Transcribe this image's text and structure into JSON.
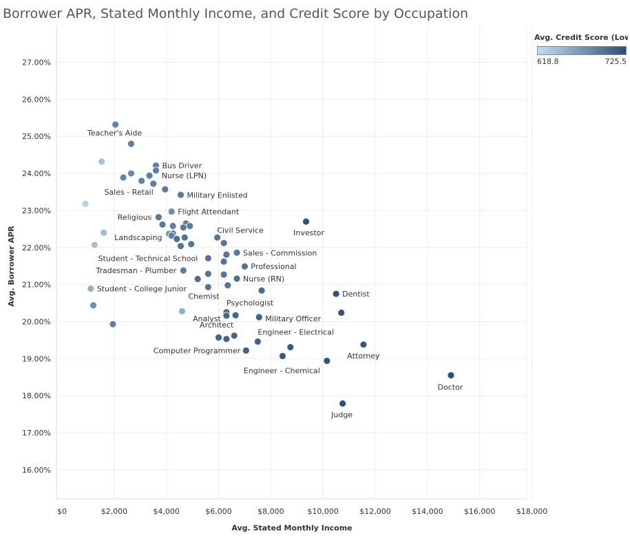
{
  "chart_data": {
    "type": "scatter",
    "title": "Borrower APR, Stated Monthly Income, and Credit Score by Occupation",
    "xlabel": "Avg. Stated Monthly Income",
    "ylabel": "Avg. Borrower APR",
    "xlim": [
      0,
      18000
    ],
    "ylim": [
      0.15,
      0.28
    ],
    "x_ticks": [
      "$0",
      "$2,000",
      "$4,000",
      "$6,000",
      "$8,000",
      "$10,000",
      "$12,000",
      "$14,000",
      "$16,000",
      "$18,000"
    ],
    "y_ticks": [
      "16.00%",
      "17.00%",
      "18.00%",
      "19.00%",
      "20.00%",
      "21.00%",
      "22.00%",
      "23.00%",
      "24.00%",
      "25.00%",
      "26.00%",
      "27.00%"
    ],
    "grid": true,
    "legend": {
      "title": "Avg. Credit Score (Lowe..",
      "min_label": "618.8",
      "max_label": "725.5",
      "min": 618.8,
      "max": 725.5,
      "color_low": "#c0def2",
      "color_high": "#2c4f78",
      "placement": "top-right"
    },
    "points": [
      {
        "label": "",
        "x": 2050,
        "y": 0.2532,
        "score": 688
      },
      {
        "label": "Teacher's Aide",
        "x": 2650,
        "y": 0.248,
        "score": 690
      },
      {
        "label": "",
        "x": 1520,
        "y": 0.2432,
        "score": 640
      },
      {
        "label": "Bus Driver",
        "x": 3600,
        "y": 0.2421,
        "score": 690
      },
      {
        "label": "",
        "x": 3600,
        "y": 0.2408,
        "score": 690
      },
      {
        "label": "",
        "x": 2650,
        "y": 0.24,
        "score": 682
      },
      {
        "label": "",
        "x": 3350,
        "y": 0.2394,
        "score": 690
      },
      {
        "label": "",
        "x": 2350,
        "y": 0.2389,
        "score": 685
      },
      {
        "label": "",
        "x": 3050,
        "y": 0.238,
        "score": 687
      },
      {
        "label": "Nurse (LPN)",
        "x": 3500,
        "y": 0.2372,
        "score": 690
      },
      {
        "label": "Sales - Retail",
        "x": 3950,
        "y": 0.2357,
        "score": 693
      },
      {
        "label": "Military Enlisted",
        "x": 4550,
        "y": 0.2342,
        "score": 692
      },
      {
        "label": "",
        "x": 900,
        "y": 0.2318,
        "score": 628
      },
      {
        "label": "Flight Attendant",
        "x": 4200,
        "y": 0.2297,
        "score": 680
      },
      {
        "label": "Religious",
        "x": 3700,
        "y": 0.2282,
        "score": 695
      },
      {
        "label": "Investor",
        "x": 9350,
        "y": 0.227,
        "score": 724
      },
      {
        "label": "",
        "x": 4750,
        "y": 0.2265,
        "score": 690
      },
      {
        "label": "",
        "x": 3850,
        "y": 0.2262,
        "score": 693
      },
      {
        "label": "",
        "x": 4900,
        "y": 0.2258,
        "score": 692
      },
      {
        "label": "",
        "x": 4250,
        "y": 0.2258,
        "score": 690
      },
      {
        "label": "Civil Service",
        "x": 4650,
        "y": 0.2254,
        "score": 693
      },
      {
        "label": "",
        "x": 1600,
        "y": 0.224,
        "score": 645
      },
      {
        "label": "",
        "x": 4250,
        "y": 0.2238,
        "score": 690
      },
      {
        "label": "Landscaping",
        "x": 4100,
        "y": 0.2237,
        "score": 670
      },
      {
        "label": "",
        "x": 4200,
        "y": 0.2232,
        "score": 688
      },
      {
        "label": "",
        "x": 4700,
        "y": 0.2227,
        "score": 700
      },
      {
        "label": "",
        "x": 5950,
        "y": 0.2227,
        "score": 697
      },
      {
        "label": "",
        "x": 4400,
        "y": 0.2223,
        "score": 700
      },
      {
        "label": "",
        "x": 6200,
        "y": 0.2212,
        "score": 697
      },
      {
        "label": "",
        "x": 4950,
        "y": 0.2209,
        "score": 697
      },
      {
        "label": "",
        "x": 1250,
        "y": 0.2207,
        "score": 642
      },
      {
        "label": "",
        "x": 4550,
        "y": 0.2204,
        "score": 697
      },
      {
        "label": "Sales - Commission",
        "x": 6700,
        "y": 0.2186,
        "score": 695
      },
      {
        "label": "",
        "x": 6300,
        "y": 0.2181,
        "score": 697
      },
      {
        "label": "Student - Technical School",
        "x": 5600,
        "y": 0.2171,
        "score": 697
      },
      {
        "label": "",
        "x": 6200,
        "y": 0.2162,
        "score": 697
      },
      {
        "label": "Professional",
        "x": 7000,
        "y": 0.2149,
        "score": 698
      },
      {
        "label": "Tradesman - Plumber",
        "x": 4650,
        "y": 0.2138,
        "score": 690
      },
      {
        "label": "",
        "x": 5600,
        "y": 0.2129,
        "score": 697
      },
      {
        "label": "",
        "x": 6200,
        "y": 0.2127,
        "score": 697
      },
      {
        "label": "",
        "x": 5200,
        "y": 0.2115,
        "score": 702
      },
      {
        "label": "Nurse (RN)",
        "x": 6700,
        "y": 0.2116,
        "score": 700
      },
      {
        "label": "",
        "x": 6350,
        "y": 0.2098,
        "score": 697
      },
      {
        "label": "",
        "x": 5600,
        "y": 0.2093,
        "score": 697
      },
      {
        "label": "Student - College Junior",
        "x": 1100,
        "y": 0.2089,
        "score": 652
      },
      {
        "label": "",
        "x": 7650,
        "y": 0.2084,
        "score": 705
      },
      {
        "label": "Dentist",
        "x": 10500,
        "y": 0.2075,
        "score": 722
      },
      {
        "label": "",
        "x": 1200,
        "y": 0.2044,
        "score": 678
      },
      {
        "label": "Chemist",
        "x": 4600,
        "y": 0.2028,
        "score": 652
      },
      {
        "label": "Psychologist",
        "x": 6300,
        "y": 0.2025,
        "score": 708
      },
      {
        "label": "",
        "x": 10700,
        "y": 0.2024,
        "score": 720
      },
      {
        "label": "",
        "x": 6650,
        "y": 0.2017,
        "score": 708
      },
      {
        "label": "Analyst",
        "x": 6300,
        "y": 0.2016,
        "score": 710
      },
      {
        "label": "Military Officer",
        "x": 7550,
        "y": 0.2012,
        "score": 712
      },
      {
        "label": "",
        "x": 1950,
        "y": 0.1993,
        "score": 690
      },
      {
        "label": "Architect",
        "x": 6600,
        "y": 0.1962,
        "score": 710
      },
      {
        "label": "",
        "x": 6000,
        "y": 0.1957,
        "score": 710
      },
      {
        "label": "",
        "x": 6300,
        "y": 0.1953,
        "score": 710
      },
      {
        "label": "Engineer - Electrical",
        "x": 7500,
        "y": 0.1946,
        "score": 710
      },
      {
        "label": "Attorney",
        "x": 11550,
        "y": 0.1938,
        "score": 718
      },
      {
        "label": "",
        "x": 8750,
        "y": 0.1931,
        "score": 715
      },
      {
        "label": "Computer Programmer",
        "x": 7050,
        "y": 0.1922,
        "score": 710
      },
      {
        "label": "",
        "x": 8450,
        "y": 0.1907,
        "score": 718
      },
      {
        "label": "Engineer - Chemical",
        "x": 10150,
        "y": 0.1894,
        "score": 722
      },
      {
        "label": "Doctor",
        "x": 14900,
        "y": 0.1855,
        "score": 724
      },
      {
        "label": "Judge",
        "x": 10750,
        "y": 0.1779,
        "score": 725
      }
    ]
  }
}
